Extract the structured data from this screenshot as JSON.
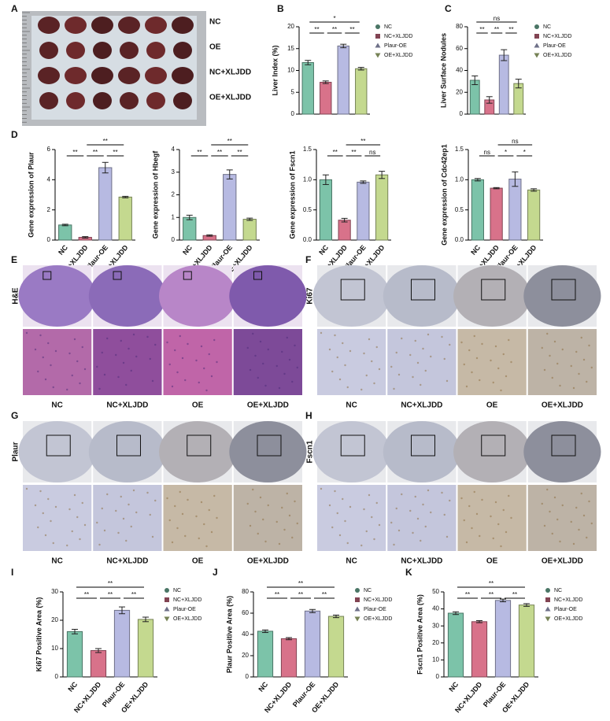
{
  "chart_data": [
    {
      "type": "bar",
      "panel": "B",
      "ylabel": "Liver Index (%)",
      "legend": [
        "NC",
        "NC+XLJDD",
        "Plaur-OE",
        "OE+XLJDD"
      ],
      "values": [
        11.8,
        7.3,
        15.6,
        10.4
      ],
      "errors": [
        0.5,
        0.3,
        0.4,
        0.3
      ],
      "colors": [
        "#7cc3a9",
        "#d8728a",
        "#b7bae2",
        "#c4d98f"
      ],
      "ylim": [
        0,
        20
      ],
      "yticks": [
        0,
        5,
        10,
        15,
        20
      ],
      "brackets": [
        {
          "label": "*",
          "between": [
            "NC",
            "OE+XLJDD"
          ]
        },
        {
          "label": "**",
          "between": [
            "NC",
            "NC+XLJDD"
          ]
        },
        {
          "label": "**",
          "between": [
            "NC+XLJDD",
            "Plaur-OE"
          ]
        },
        {
          "label": "**",
          "between": [
            "Plaur-OE",
            "OE+XLJDD"
          ]
        }
      ]
    },
    {
      "type": "bar",
      "panel": "C",
      "ylabel": "Liver Surface Nodules",
      "legend": [
        "NC",
        "NC+XLJDD",
        "Plaur-OE",
        "OE+XLJDD"
      ],
      "values": [
        31,
        13,
        54,
        28
      ],
      "errors": [
        4,
        3,
        5,
        4
      ],
      "colors": [
        "#7cc3a9",
        "#d8728a",
        "#b7bae2",
        "#c4d98f"
      ],
      "ylim": [
        0,
        80
      ],
      "yticks": [
        0,
        20,
        40,
        60,
        80
      ],
      "brackets": [
        {
          "label": "ns",
          "between": [
            "NC",
            "OE+XLJDD"
          ]
        },
        {
          "label": "**",
          "between": [
            "NC",
            "NC+XLJDD"
          ]
        },
        {
          "label": "**",
          "between": [
            "NC+XLJDD",
            "Plaur-OE"
          ]
        },
        {
          "label": "**",
          "between": [
            "Plaur-OE",
            "OE+XLJDD"
          ]
        }
      ]
    },
    {
      "type": "bar",
      "panel": "D",
      "ylabel": "Gene expression of Plaur",
      "categories": [
        "NC",
        "NC+XLJDD",
        "Plaur-OE",
        "OE+XLJDD"
      ],
      "values": [
        1.0,
        0.18,
        4.8,
        2.85
      ],
      "errors": [
        0.05,
        0.05,
        0.35,
        0.05
      ],
      "colors": [
        "#7cc3a9",
        "#d8728a",
        "#b7bae2",
        "#c4d98f"
      ],
      "ylim": [
        0,
        6
      ],
      "yticks": [
        0,
        2,
        4,
        6
      ],
      "brackets": [
        {
          "label": "**",
          "between": [
            "NC+XLJDD",
            "OE+XLJDD"
          ]
        },
        {
          "label": "**",
          "between": [
            "NC",
            "NC+XLJDD"
          ]
        },
        {
          "label": "**",
          "between": [
            "NC+XLJDD",
            "Plaur-OE"
          ]
        },
        {
          "label": "**",
          "between": [
            "Plaur-OE",
            "OE+XLJDD"
          ]
        }
      ]
    },
    {
      "type": "bar",
      "ylabel": "Gene expression of Hbegf",
      "categories": [
        "NC",
        "NC+XLJDD",
        "Plaur-OE",
        "OE+XLJDD"
      ],
      "values": [
        1.0,
        0.2,
        2.9,
        0.92
      ],
      "errors": [
        0.1,
        0.03,
        0.2,
        0.05
      ],
      "colors": [
        "#7cc3a9",
        "#d8728a",
        "#b7bae2",
        "#c4d98f"
      ],
      "ylim": [
        0,
        4
      ],
      "yticks": [
        0,
        1,
        2,
        3,
        4
      ],
      "brackets": [
        {
          "label": "**",
          "between": [
            "NC+XLJDD",
            "OE+XLJDD"
          ]
        },
        {
          "label": "**",
          "between": [
            "NC",
            "NC+XLJDD"
          ]
        },
        {
          "label": "**",
          "between": [
            "NC+XLJDD",
            "Plaur-OE"
          ]
        },
        {
          "label": "**",
          "between": [
            "Plaur-OE",
            "OE+XLJDD"
          ]
        }
      ]
    },
    {
      "type": "bar",
      "ylabel": "Gene expression of Fscn1",
      "categories": [
        "NC",
        "NC+XLJDD",
        "Plaur-OE",
        "OE+XLJDD"
      ],
      "values": [
        1.0,
        0.33,
        0.96,
        1.08
      ],
      "errors": [
        0.08,
        0.03,
        0.02,
        0.06
      ],
      "colors": [
        "#7cc3a9",
        "#d8728a",
        "#b7bae2",
        "#c4d98f"
      ],
      "ylim": [
        0,
        1.5
      ],
      "yticks": [
        {
          "value": 0,
          "label": "0.0"
        },
        0.5,
        {
          "value": 1,
          "label": "1.0"
        },
        1.5
      ],
      "brackets": [
        {
          "label": "**",
          "between": [
            "NC+XLJDD",
            "OE+XLJDD"
          ]
        },
        {
          "label": "**",
          "between": [
            "NC",
            "NC+XLJDD"
          ]
        },
        {
          "label": "**",
          "between": [
            "NC+XLJDD",
            "Plaur-OE"
          ]
        },
        {
          "label": "ns",
          "between": [
            "Plaur-OE",
            "OE+XLJDD"
          ]
        }
      ]
    },
    {
      "type": "bar",
      "ylabel": "Gene expression of Cdc42ep1",
      "categories": [
        "NC",
        "NC+XLJDD",
        "Plaur-OE",
        "OE+XLJDD"
      ],
      "values": [
        1.0,
        0.86,
        1.01,
        0.83
      ],
      "errors": [
        0.02,
        0.01,
        0.12,
        0.02
      ],
      "colors": [
        "#7cc3a9",
        "#d8728a",
        "#b7bae2",
        "#c4d98f"
      ],
      "ylim": [
        0,
        1.5
      ],
      "yticks": [
        {
          "value": 0,
          "label": "0.0"
        },
        0.5,
        {
          "value": 1,
          "label": "1.0"
        },
        1.5
      ],
      "brackets": [
        {
          "label": "ns",
          "between": [
            "NC+XLJDD",
            "OE+XLJDD"
          ]
        },
        {
          "label": "ns",
          "between": [
            "NC",
            "NC+XLJDD"
          ]
        },
        {
          "label": "*",
          "between": [
            "NC+XLJDD",
            "Plaur-OE"
          ]
        },
        {
          "label": "*",
          "between": [
            "Plaur-OE",
            "OE+XLJDD"
          ]
        }
      ]
    },
    {
      "type": "bar",
      "panel": "I",
      "ylabel": "Ki67 Positive Area (%)",
      "categories": [
        "NC",
        "NC+XLJDD",
        "Plaur-OE",
        "OE+XLJDD"
      ],
      "legend": [
        "NC",
        "NC+XLJDD",
        "Plaur-OE",
        "OE+XLJDD"
      ],
      "values": [
        16,
        9.3,
        23.5,
        20.3
      ],
      "errors": [
        0.8,
        0.7,
        1.2,
        0.8
      ],
      "colors": [
        "#7cc3a9",
        "#d8728a",
        "#b7bae2",
        "#c4d98f"
      ],
      "ylim": [
        0,
        30
      ],
      "yticks": [
        0,
        10,
        20,
        30
      ],
      "brackets": [
        {
          "label": "**",
          "between": [
            "NC",
            "OE+XLJDD"
          ]
        },
        {
          "label": "**",
          "between": [
            "NC",
            "NC+XLJDD"
          ]
        },
        {
          "label": "**",
          "between": [
            "NC+XLJDD",
            "Plaur-OE"
          ]
        },
        {
          "label": "**",
          "between": [
            "Plaur-OE",
            "OE+XLJDD"
          ]
        }
      ]
    },
    {
      "type": "bar",
      "panel": "J",
      "ylabel": "Plaur Positive Area (%)",
      "categories": [
        "NC",
        "NC+XLJDD",
        "Plaur-OE",
        "OE+XLJDD"
      ],
      "legend": [
        "NC",
        "NC+XLJDD",
        "Plaur-OE",
        "OE+XLJDD"
      ],
      "values": [
        43,
        36,
        62,
        57
      ],
      "errors": [
        1.2,
        1.0,
        1.5,
        1.2
      ],
      "colors": [
        "#7cc3a9",
        "#d8728a",
        "#b7bae2",
        "#c4d98f"
      ],
      "ylim": [
        0,
        80
      ],
      "yticks": [
        0,
        20,
        40,
        60,
        80
      ],
      "brackets": [
        {
          "label": "**",
          "between": [
            "NC",
            "OE+XLJDD"
          ]
        },
        {
          "label": "**",
          "between": [
            "NC",
            "NC+XLJDD"
          ]
        },
        {
          "label": "**",
          "between": [
            "NC+XLJDD",
            "Plaur-OE"
          ]
        },
        {
          "label": "**",
          "between": [
            "Plaur-OE",
            "OE+XLJDD"
          ]
        }
      ]
    },
    {
      "type": "bar",
      "panel": "K",
      "ylabel": "Fscn1 Positive Area (%)",
      "categories": [
        "NC",
        "NC+XLJDD",
        "Plaur-OE",
        "OE+XLJDD"
      ],
      "legend": [
        "NC",
        "NC+XLJDD",
        "Plaur-OE",
        "OE+XLJDD"
      ],
      "values": [
        37.5,
        32.5,
        45,
        42.3
      ],
      "errors": [
        0.8,
        0.6,
        0.8,
        0.8
      ],
      "colors": [
        "#7cc3a9",
        "#d8728a",
        "#b7bae2",
        "#c4d98f"
      ],
      "ylim": [
        0,
        50
      ],
      "yticks": [
        0,
        10,
        20,
        30,
        40,
        50
      ],
      "brackets": [
        {
          "label": "**",
          "between": [
            "NC",
            "OE+XLJDD"
          ]
        },
        {
          "label": "**",
          "between": [
            "NC",
            "NC+XLJDD"
          ]
        },
        {
          "label": "**",
          "between": [
            "NC+XLJDD",
            "Plaur-OE"
          ]
        },
        {
          "label": "**",
          "between": [
            "Plaur-OE",
            "OE+XLJDD"
          ]
        }
      ]
    }
  ],
  "photo_panel": {
    "panel": "A",
    "rows": [
      "NC",
      "OE",
      "NC+XLJDD",
      "OE+XLJDD"
    ]
  },
  "histology_panels": [
    {
      "panel": "E",
      "stain": "H&E",
      "groups": [
        "NC",
        "NC+XLJDD",
        "OE",
        "OE+XLJDD"
      ]
    },
    {
      "panel": "F",
      "stain": "Ki67",
      "groups": [
        "NC",
        "NC+XLJDD",
        "OE",
        "OE+XLJDD"
      ]
    },
    {
      "panel": "G",
      "stain": "Plaur",
      "groups": [
        "NC",
        "NC+XLJDD",
        "OE",
        "OE+XLJDD"
      ]
    },
    {
      "panel": "H",
      "stain": "Fscn1",
      "groups": [
        "NC",
        "NC+XLJDD",
        "OE",
        "OE+XLJDD"
      ]
    }
  ]
}
